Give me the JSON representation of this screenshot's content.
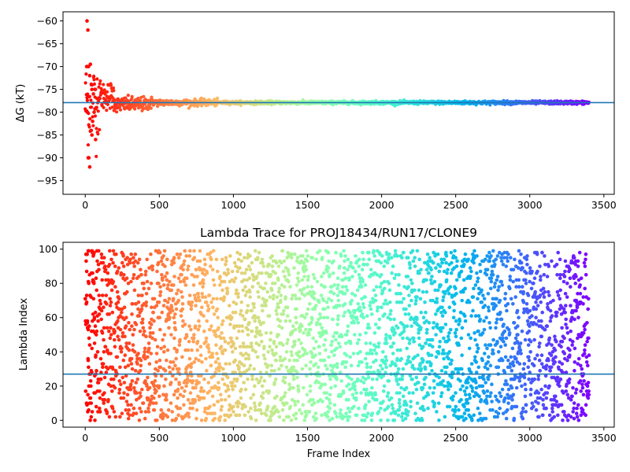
{
  "chart_data": [
    {
      "type": "scatter",
      "title": "",
      "xlabel": "",
      "ylabel": "ΔG (kT)",
      "xlim": [
        -150,
        3570
      ],
      "ylim": [
        -98,
        -58
      ],
      "xticks": [
        0,
        500,
        1000,
        1500,
        2000,
        2500,
        3000,
        3500
      ],
      "yticks": [
        -95,
        -90,
        -85,
        -80,
        -75,
        -70,
        -65,
        -60
      ],
      "colormap": "rainbow (red at early frames to violet at late frames)",
      "reference_line": -77.9,
      "reference_color": "#1f77b4",
      "series": [
        {
          "x": [
            10,
            20,
            30,
            40,
            50,
            60,
            80,
            100,
            130,
            160,
            200,
            250,
            300,
            350,
            400,
            500,
            600,
            800,
            1000,
            1200,
            1400,
            1600,
            2000,
            2400,
            2800,
            3400
          ],
          "y": [
            -60,
            -90,
            -92,
            -70,
            -72,
            -82,
            -84,
            -78,
            -76,
            -76,
            -79,
            -77,
            -78,
            -78.5,
            -78,
            -78,
            -77.5,
            -78,
            -78,
            -78,
            -78,
            -78,
            -78,
            -78,
            -77.8,
            -78
          ]
        }
      ]
    },
    {
      "type": "scatter",
      "title": "Lambda Trace for PROJ18434/RUN17/CLONE9",
      "xlabel": "Frame Index",
      "ylabel": "Lambda Index",
      "xlim": [
        -150,
        3570
      ],
      "ylim": [
        -4,
        104
      ],
      "xticks": [
        0,
        500,
        1000,
        1500,
        2000,
        2500,
        3000,
        3500
      ],
      "yticks": [
        0,
        20,
        40,
        60,
        80,
        100
      ],
      "colormap": "rainbow (red at early frames to violet at late frames)",
      "reference_line": 27,
      "reference_color": "#1f77b4",
      "series": [
        {
          "x": [
            0,
            3400
          ],
          "y_range": [
            0,
            99
          ],
          "note_points": [
            [
              10,
              87
            ],
            [
              10,
              73
            ],
            [
              20,
              53
            ],
            [
              20,
              35
            ],
            [
              25,
              20
            ],
            [
              40,
              10
            ],
            [
              60,
              98
            ],
            [
              100,
              65
            ],
            [
              150,
              40
            ],
            [
              300,
              92
            ],
            [
              600,
              15
            ],
            [
              1000,
              5
            ],
            [
              1500,
              50
            ],
            [
              2000,
              80
            ],
            [
              2500,
              30
            ],
            [
              3000,
              60
            ],
            [
              3300,
              95
            ]
          ]
        }
      ]
    }
  ]
}
